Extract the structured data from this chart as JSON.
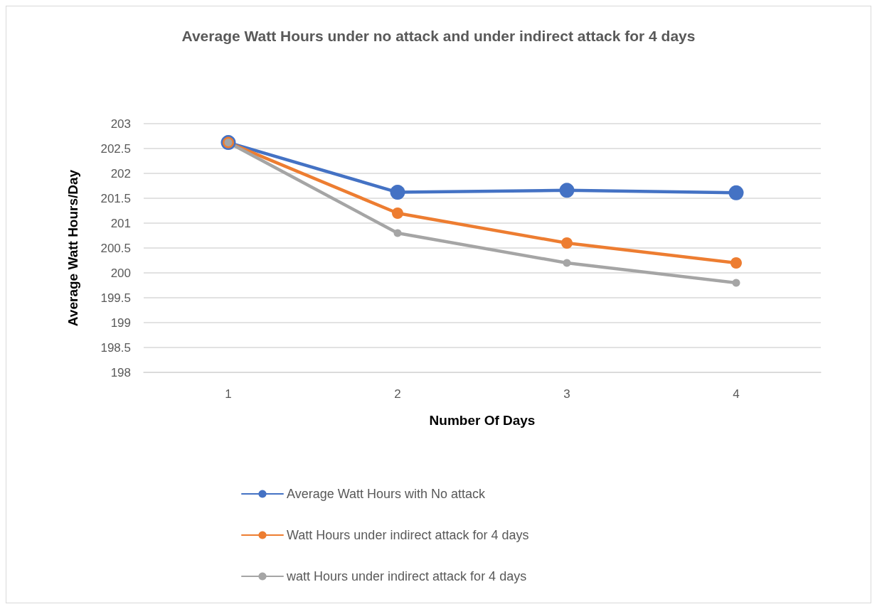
{
  "chart_data": {
    "type": "line",
    "title": "Average Watt Hours under no attack and under indirect attack for 4 days",
    "xlabel": "Number Of Days",
    "ylabel": "Average Watt Hours/Day",
    "categories": [
      "1",
      "2",
      "3",
      "4"
    ],
    "series": [
      {
        "name": "Average Watt Hours with No attack",
        "color": "#4472c4",
        "values": [
          202.62,
          201.62,
          201.66,
          201.61
        ]
      },
      {
        "name": "Watt Hours under indirect attack for 4 days",
        "color": "#ed7d31",
        "values": [
          202.62,
          201.2,
          200.6,
          200.2
        ]
      },
      {
        "name": "watt Hours under indirect attack for 4 days",
        "color": "#a5a5a5",
        "values": [
          202.62,
          200.8,
          200.2,
          199.8
        ]
      }
    ],
    "ylim": [
      198,
      203
    ],
    "yticks": [
      198,
      198.5,
      199,
      199.5,
      200,
      200.5,
      201,
      201.5,
      202,
      202.5,
      203
    ],
    "grid": "y",
    "legend": "bottom",
    "marker": "circle",
    "line_style": "solid"
  }
}
